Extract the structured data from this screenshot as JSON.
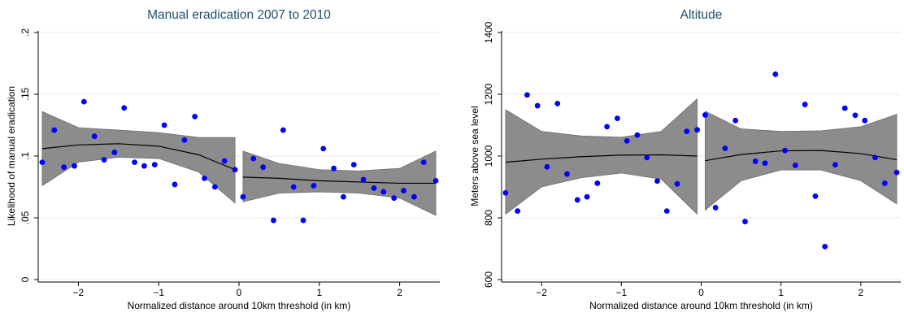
{
  "chart_data": [
    {
      "type": "scatter",
      "title": "Manual eradication 2007 to 2010",
      "xlabel": "Normalized distance around 10km threshold (in km)",
      "ylabel": "Likelihood of manual eradication",
      "xlim": [
        -2.5,
        2.5
      ],
      "ylim": [
        0,
        0.2
      ],
      "xticks": [
        -2,
        -1,
        0,
        1,
        2
      ],
      "xtick_labels": [
        "−2",
        "−1",
        "0",
        "1",
        "2"
      ],
      "yticks": [
        0,
        0.05,
        0.1,
        0.15,
        0.2
      ],
      "ytick_labels": [
        "0",
        ".05",
        ".1",
        ".15",
        ".2"
      ],
      "grid": true,
      "point_color": "#0000ff",
      "band_color": "#8c8c8c",
      "points": [
        {
          "x": -2.45,
          "y": 0.095
        },
        {
          "x": -2.3,
          "y": 0.121
        },
        {
          "x": -2.18,
          "y": 0.091
        },
        {
          "x": -2.05,
          "y": 0.092
        },
        {
          "x": -1.93,
          "y": 0.144
        },
        {
          "x": -1.8,
          "y": 0.116
        },
        {
          "x": -1.68,
          "y": 0.097
        },
        {
          "x": -1.55,
          "y": 0.103
        },
        {
          "x": -1.43,
          "y": 0.139
        },
        {
          "x": -1.3,
          "y": 0.095
        },
        {
          "x": -1.18,
          "y": 0.092
        },
        {
          "x": -1.05,
          "y": 0.093
        },
        {
          "x": -0.93,
          "y": 0.125
        },
        {
          "x": -0.8,
          "y": 0.077
        },
        {
          "x": -0.68,
          "y": 0.113
        },
        {
          "x": -0.55,
          "y": 0.132
        },
        {
          "x": -0.43,
          "y": 0.082
        },
        {
          "x": -0.3,
          "y": 0.075
        },
        {
          "x": -0.18,
          "y": 0.096
        },
        {
          "x": -0.05,
          "y": 0.089
        },
        {
          "x": 0.05,
          "y": 0.067
        },
        {
          "x": 0.18,
          "y": 0.098
        },
        {
          "x": 0.3,
          "y": 0.091
        },
        {
          "x": 0.43,
          "y": 0.048
        },
        {
          "x": 0.55,
          "y": 0.121
        },
        {
          "x": 0.68,
          "y": 0.075
        },
        {
          "x": 0.8,
          "y": 0.048
        },
        {
          "x": 0.93,
          "y": 0.076
        },
        {
          "x": 1.05,
          "y": 0.106
        },
        {
          "x": 1.18,
          "y": 0.09
        },
        {
          "x": 1.3,
          "y": 0.067
        },
        {
          "x": 1.43,
          "y": 0.093
        },
        {
          "x": 1.55,
          "y": 0.081
        },
        {
          "x": 1.68,
          "y": 0.074
        },
        {
          "x": 1.8,
          "y": 0.071
        },
        {
          "x": 1.93,
          "y": 0.066
        },
        {
          "x": 2.05,
          "y": 0.072
        },
        {
          "x": 2.18,
          "y": 0.067
        },
        {
          "x": 2.3,
          "y": 0.095
        },
        {
          "x": 2.45,
          "y": 0.08
        }
      ],
      "fits": [
        {
          "x": [
            -2.45,
            -2.0,
            -1.5,
            -1.0,
            -0.5,
            -0.05
          ],
          "y": [
            0.106,
            0.109,
            0.11,
            0.108,
            0.101,
            0.089
          ],
          "lower": [
            0.076,
            0.095,
            0.099,
            0.098,
            0.087,
            0.062
          ],
          "upper": [
            0.136,
            0.123,
            0.121,
            0.119,
            0.115,
            0.115
          ]
        },
        {
          "x": [
            0.05,
            0.5,
            1.0,
            1.5,
            2.0,
            2.45
          ],
          "y": [
            0.083,
            0.082,
            0.08,
            0.079,
            0.078,
            0.078
          ],
          "lower": [
            0.063,
            0.07,
            0.071,
            0.07,
            0.066,
            0.052
          ],
          "upper": [
            0.104,
            0.094,
            0.089,
            0.088,
            0.09,
            0.104
          ]
        }
      ]
    },
    {
      "type": "scatter",
      "title": "Altitude",
      "xlabel": "Normalized distance around 10km threshold (in km)",
      "ylabel": "Meters above sea level",
      "xlim": [
        -2.5,
        2.5
      ],
      "ylim": [
        600,
        1400
      ],
      "xticks": [
        -2,
        -1,
        0,
        1,
        2
      ],
      "xtick_labels": [
        "−2",
        "−1",
        "0",
        "1",
        "2"
      ],
      "yticks": [
        600,
        800,
        1000,
        1200,
        1400
      ],
      "ytick_labels": [
        "600",
        "800",
        "1000",
        "1200",
        "1400"
      ],
      "grid": true,
      "point_color": "#0000ff",
      "band_color": "#8c8c8c",
      "points": [
        {
          "x": -2.45,
          "y": 881
        },
        {
          "x": -2.3,
          "y": 822
        },
        {
          "x": -2.18,
          "y": 1198
        },
        {
          "x": -2.05,
          "y": 1163
        },
        {
          "x": -1.93,
          "y": 965
        },
        {
          "x": -1.8,
          "y": 1170
        },
        {
          "x": -1.68,
          "y": 942
        },
        {
          "x": -1.55,
          "y": 858
        },
        {
          "x": -1.43,
          "y": 868
        },
        {
          "x": -1.3,
          "y": 912
        },
        {
          "x": -1.18,
          "y": 1095
        },
        {
          "x": -1.05,
          "y": 1122
        },
        {
          "x": -0.93,
          "y": 1049
        },
        {
          "x": -0.8,
          "y": 1068
        },
        {
          "x": -0.68,
          "y": 995
        },
        {
          "x": -0.55,
          "y": 919
        },
        {
          "x": -0.43,
          "y": 822
        },
        {
          "x": -0.3,
          "y": 910
        },
        {
          "x": -0.18,
          "y": 1080
        },
        {
          "x": -0.05,
          "y": 1085
        },
        {
          "x": 0.05,
          "y": 1133
        },
        {
          "x": 0.18,
          "y": 833
        },
        {
          "x": 0.3,
          "y": 1025
        },
        {
          "x": 0.43,
          "y": 1115
        },
        {
          "x": 0.55,
          "y": 788
        },
        {
          "x": 0.68,
          "y": 983
        },
        {
          "x": 0.8,
          "y": 977
        },
        {
          "x": 0.93,
          "y": 1265
        },
        {
          "x": 1.05,
          "y": 1018
        },
        {
          "x": 1.18,
          "y": 970
        },
        {
          "x": 1.3,
          "y": 1167
        },
        {
          "x": 1.43,
          "y": 870
        },
        {
          "x": 1.55,
          "y": 707
        },
        {
          "x": 1.68,
          "y": 972
        },
        {
          "x": 1.8,
          "y": 1155
        },
        {
          "x": 1.93,
          "y": 1132
        },
        {
          "x": 2.05,
          "y": 1115
        },
        {
          "x": 2.18,
          "y": 995
        },
        {
          "x": 2.3,
          "y": 912
        },
        {
          "x": 2.45,
          "y": 947
        }
      ],
      "fits": [
        {
          "x": [
            -2.45,
            -2.0,
            -1.5,
            -1.0,
            -0.5,
            -0.05
          ],
          "y": [
            980,
            990,
            998,
            1003,
            1004,
            1000
          ],
          "lower": [
            812,
            900,
            930,
            945,
            925,
            812
          ],
          "upper": [
            1150,
            1080,
            1065,
            1061,
            1080,
            1185
          ]
        },
        {
          "x": [
            0.05,
            0.5,
            1.0,
            1.5,
            2.0,
            2.45
          ],
          "y": [
            985,
            1005,
            1017,
            1018,
            1008,
            988
          ],
          "lower": [
            825,
            920,
            955,
            955,
            920,
            845
          ],
          "upper": [
            1145,
            1088,
            1080,
            1082,
            1095,
            1135
          ]
        }
      ]
    }
  ]
}
